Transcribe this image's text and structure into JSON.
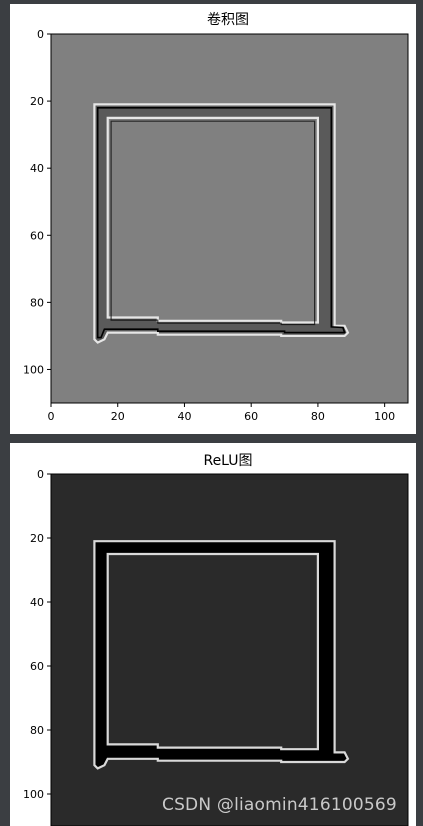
{
  "chart_data": [
    {
      "type": "heatmap",
      "title": "卷积图",
      "background": "#808080",
      "colors": {
        "dark": "#000000",
        "mid": "#5a5a5a",
        "light": "#e6e6e6"
      },
      "xlim": [
        0,
        107
      ],
      "ylim": [
        110,
        0
      ],
      "xticks": [
        "0",
        "20",
        "40",
        "60",
        "80",
        "100"
      ],
      "yticks": [
        "0",
        "20",
        "40",
        "60",
        "80",
        "100"
      ],
      "cmap": "gray"
    },
    {
      "type": "heatmap",
      "title": "ReLU图",
      "background": "#2a2a2a",
      "colors": {
        "dark": "#000000",
        "mid": "#000000",
        "light": "#d9d9d9"
      },
      "xlim": [
        0,
        107
      ],
      "ylim": [
        110,
        0
      ],
      "yticks": [
        "0",
        "20",
        "40",
        "60",
        "80",
        "100"
      ],
      "cmap": "gray"
    }
  ],
  "watermark": "CSDN @liaomin416100569"
}
